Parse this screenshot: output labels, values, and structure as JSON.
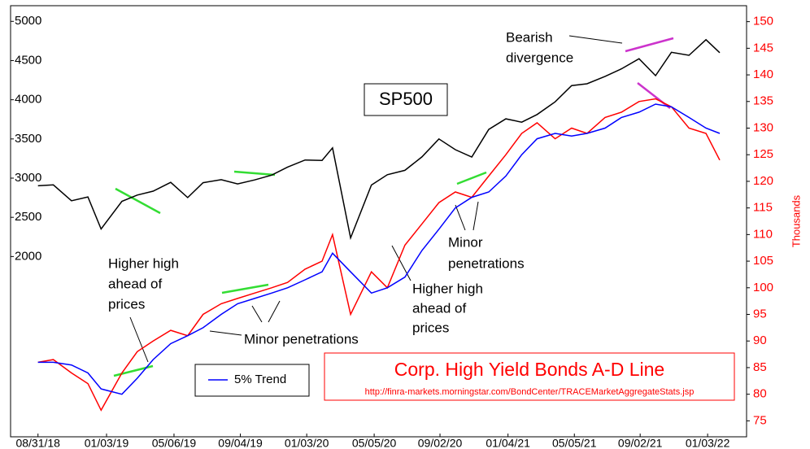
{
  "chart_data": {
    "type": "line",
    "x": [
      "08/31/18",
      "09/28/18",
      "10/31/18",
      "11/30/18",
      "12/24/18",
      "01/31/19",
      "02/28/19",
      "03/29/19",
      "04/30/19",
      "05/31/19",
      "06/28/19",
      "07/31/19",
      "08/30/19",
      "09/30/19",
      "10/31/19",
      "11/29/19",
      "12/31/19",
      "01/31/20",
      "02/19/20",
      "03/23/20",
      "04/30/20",
      "05/29/20",
      "06/30/20",
      "07/31/20",
      "08/31/20",
      "09/30/20",
      "10/30/20",
      "11/30/20",
      "12/31/20",
      "01/29/21",
      "02/26/21",
      "03/31/21",
      "04/30/21",
      "05/28/21",
      "06/30/21",
      "07/30/21",
      "08/31/21",
      "09/30/21",
      "10/29/21",
      "11/30/21",
      "12/31/21",
      "01/25/22"
    ],
    "series": [
      {
        "name": "SP500",
        "color": "#000000",
        "axis": "y",
        "values": [
          2902,
          2914,
          2712,
          2760,
          2351,
          2704,
          2784,
          2834,
          2946,
          2752,
          2942,
          2980,
          2926,
          2977,
          3038,
          3141,
          3231,
          3226,
          3386,
          2237,
          2912,
          3044,
          3100,
          3271,
          3500,
          3363,
          3270,
          3622,
          3756,
          3714,
          3811,
          3973,
          4181,
          4204,
          4298,
          4395,
          4523,
          4308,
          4605,
          4567,
          4766,
          4600
        ]
      },
      {
        "name": "Corp. High Yield Bonds A-D Line",
        "color": "#ff0000",
        "axis": "y2",
        "values": [
          86,
          86.5,
          84,
          82,
          77,
          84,
          88,
          90,
          92,
          91,
          95,
          97,
          98,
          99,
          100,
          101,
          103.5,
          105,
          110,
          95,
          103,
          100,
          108,
          112,
          116,
          118,
          117,
          121,
          125,
          129,
          131,
          128,
          130,
          129,
          132,
          133,
          135,
          135.5,
          134,
          130,
          129,
          124
        ]
      },
      {
        "name": "5% Trend",
        "color": "#0000ff",
        "axis": "y2",
        "values": [
          86,
          86,
          85.5,
          84,
          81,
          80,
          83,
          86.5,
          89.5,
          91,
          92.5,
          95,
          97,
          98,
          99,
          100,
          101.5,
          103,
          106.5,
          103,
          99,
          100,
          102,
          107,
          111,
          115,
          117,
          118,
          121,
          125,
          128,
          129,
          128.5,
          129,
          130,
          132,
          133,
          134.5,
          134,
          132,
          130,
          129
        ]
      }
    ],
    "xlim": [
      "07/12/18",
      "03/15/22"
    ],
    "xticks": [
      "08/31/18",
      "01/03/19",
      "05/06/19",
      "09/04/19",
      "01/03/20",
      "05/05/20",
      "09/02/20",
      "01/04/21",
      "05/05/21",
      "09/02/21",
      "01/03/22"
    ],
    "ylim": [
      -300,
      5200
    ],
    "yticks": [
      2000,
      2500,
      3000,
      3500,
      4000,
      4500,
      5000
    ],
    "y2lim": [
      72,
      153
    ],
    "y2ticks": [
      75,
      80,
      85,
      90,
      95,
      100,
      105,
      110,
      115,
      120,
      125,
      130,
      135,
      140,
      145,
      150
    ],
    "y2label": "Thousands",
    "source": "http://finra-markets.morningstar.com/BondCenter/TRACEMarketAggregateStats.jsp",
    "annotations": [
      [
        "Higher high",
        "ahead of",
        "prices"
      ],
      [
        "Minor penetrations"
      ],
      [
        "Higher high",
        "ahead of",
        "prices"
      ],
      [
        "Minor",
        "penetrations"
      ],
      [
        "Bearish",
        "divergence"
      ]
    ],
    "grid": false
  }
}
